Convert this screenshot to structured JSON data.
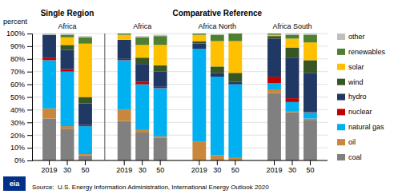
{
  "chart_data": {
    "type": "bar",
    "stacked": true,
    "grid": true,
    "legend": "right",
    "ylabel": "percent",
    "headers": [
      "Single Region",
      "Comparative Reference"
    ],
    "group_labels": [
      "Africa",
      "Africa",
      "Africa North",
      "Africa South"
    ],
    "categories": [
      "2019",
      "30",
      "50",
      "2019",
      "30",
      "50",
      "2019",
      "30",
      "50",
      "2019",
      "30",
      "50"
    ],
    "series": [
      {
        "name": "coal",
        "color": "#808080",
        "values": [
          33,
          25,
          4,
          31,
          22,
          18,
          0,
          0,
          0,
          53,
          38,
          32
        ]
      },
      {
        "name": "oil",
        "color": "#c8873c",
        "values": [
          8,
          2,
          1,
          9,
          2,
          1,
          15,
          4,
          2,
          3,
          1,
          1
        ]
      },
      {
        "name": "natural gas",
        "color": "#00b0f0",
        "values": [
          38,
          43,
          22,
          39,
          36,
          38,
          73,
          62,
          58,
          5,
          7,
          5
        ]
      },
      {
        "name": "nuclear",
        "color": "#c00000",
        "values": [
          2,
          2,
          1,
          1,
          2,
          1,
          0,
          0,
          0,
          5,
          3,
          1
        ]
      },
      {
        "name": "hydro",
        "color": "#1f3864",
        "values": [
          18,
          15,
          17,
          15,
          14,
          12,
          4,
          3,
          2,
          30,
          32,
          30
        ]
      },
      {
        "name": "wind",
        "color": "#375623",
        "values": [
          0,
          4,
          5,
          0,
          5,
          5,
          2,
          5,
          7,
          2,
          8,
          10
        ]
      },
      {
        "name": "solar",
        "color": "#ffc000",
        "values": [
          0,
          6,
          42,
          4,
          10,
          16,
          5,
          20,
          25,
          1,
          7,
          14
        ]
      },
      {
        "name": "renewables",
        "color": "#4f8031",
        "values": [
          0,
          2,
          5,
          1,
          6,
          7,
          1,
          5,
          6,
          1,
          3,
          6
        ]
      },
      {
        "name": "other",
        "color": "#bfbfbf",
        "values": [
          1,
          1,
          1,
          0,
          1,
          1,
          0,
          0,
          0,
          0,
          1,
          1
        ]
      }
    ],
    "ylim": [
      0,
      100
    ],
    "yticks": [
      {
        "value": 0,
        "label": "0%"
      },
      {
        "value": 10,
        "label": "10%"
      },
      {
        "value": 20,
        "label": "20%"
      },
      {
        "value": 30,
        "label": "30%"
      },
      {
        "value": 40,
        "label": "40%"
      },
      {
        "value": 50,
        "label": "50%"
      },
      {
        "value": 60,
        "label": "60%"
      },
      {
        "value": 70,
        "label": "70%"
      },
      {
        "value": 80,
        "label": "80%"
      },
      {
        "value": 90,
        "label": "90%"
      },
      {
        "value": 100,
        "label": "100%"
      }
    ],
    "source": "Source:  U.S. Energy Information Administration, International Energy Outlook 2020",
    "logo": "eia"
  }
}
